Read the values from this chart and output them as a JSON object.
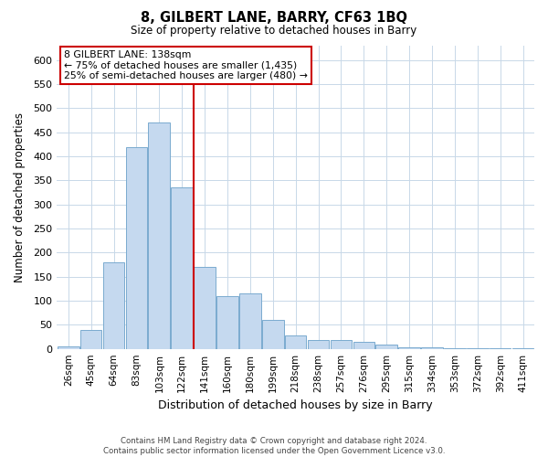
{
  "title": "8, GILBERT LANE, BARRY, CF63 1BQ",
  "subtitle": "Size of property relative to detached houses in Barry",
  "xlabel": "Distribution of detached houses by size in Barry",
  "ylabel": "Number of detached properties",
  "footer_line1": "Contains HM Land Registry data © Crown copyright and database right 2024.",
  "footer_line2": "Contains public sector information licensed under the Open Government Licence v3.0.",
  "annotation_line1": "8 GILBERT LANE: 138sqm",
  "annotation_line2": "← 75% of detached houses are smaller (1,435)",
  "annotation_line3": "25% of semi-detached houses are larger (480) →",
  "bar_labels": [
    "26sqm",
    "45sqm",
    "64sqm",
    "83sqm",
    "103sqm",
    "122sqm",
    "141sqm",
    "160sqm",
    "180sqm",
    "199sqm",
    "218sqm",
    "238sqm",
    "257sqm",
    "276sqm",
    "295sqm",
    "315sqm",
    "334sqm",
    "353sqm",
    "372sqm",
    "392sqm",
    "411sqm"
  ],
  "bar_values": [
    5,
    40,
    180,
    420,
    470,
    335,
    170,
    110,
    115,
    60,
    28,
    18,
    18,
    15,
    8,
    3,
    3,
    2,
    1,
    2,
    1
  ],
  "bar_color": "#c5d9ef",
  "bar_edge_color": "#7aabcf",
  "vline_index": 6,
  "vline_color": "#cc0000",
  "ylim": [
    0,
    630
  ],
  "yticks": [
    0,
    50,
    100,
    150,
    200,
    250,
    300,
    350,
    400,
    450,
    500,
    550,
    600
  ],
  "annotation_box_color": "#cc0000",
  "background_color": "#ffffff",
  "grid_color": "#c8d8e8"
}
